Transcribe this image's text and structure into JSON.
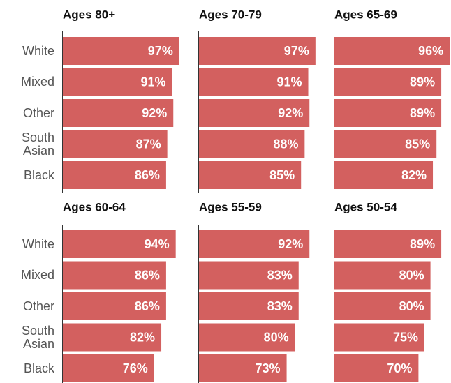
{
  "chart_data": {
    "type": "bar",
    "color": "#d3605f",
    "xlim": [
      0,
      100
    ],
    "categories": [
      "White",
      "Mixed",
      "Other",
      "South Asian",
      "Black"
    ],
    "panels": [
      {
        "title": "Ages 80+",
        "values": [
          97,
          91,
          92,
          87,
          86
        ],
        "value_labels": [
          "97%",
          "91%",
          "92%",
          "87%",
          "86%"
        ]
      },
      {
        "title": "Ages 70-79",
        "values": [
          97,
          91,
          92,
          88,
          85
        ],
        "value_labels": [
          "97%",
          "91%",
          "92%",
          "88%",
          "85%"
        ]
      },
      {
        "title": "Ages 65-69",
        "values": [
          96,
          89,
          89,
          85,
          82
        ],
        "value_labels": [
          "96%",
          "89%",
          "89%",
          "85%",
          "82%"
        ]
      },
      {
        "title": "Ages 60-64",
        "values": [
          94,
          86,
          86,
          82,
          76
        ],
        "value_labels": [
          "94%",
          "86%",
          "86%",
          "82%",
          "76%"
        ]
      },
      {
        "title": "Ages 55-59",
        "values": [
          92,
          83,
          83,
          80,
          73
        ],
        "value_labels": [
          "92%",
          "83%",
          "83%",
          "80%",
          "73%"
        ]
      },
      {
        "title": "Ages 50-54",
        "values": [
          89,
          80,
          80,
          75,
          70
        ],
        "value_labels": [
          "89%",
          "80%",
          "80%",
          "75%",
          "70%"
        ]
      }
    ]
  }
}
